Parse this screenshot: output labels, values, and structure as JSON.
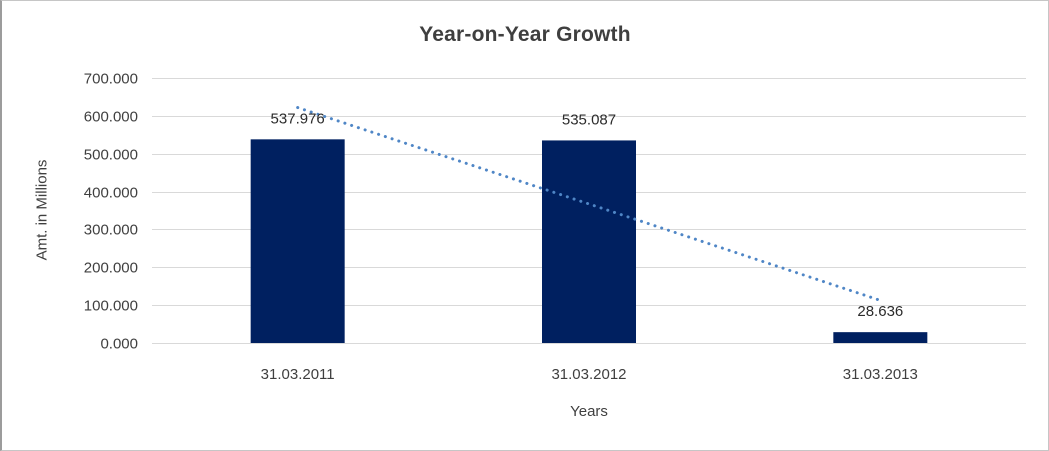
{
  "chart_data": {
    "type": "bar",
    "title": "Year-on-Year Growth",
    "xlabel": "Years",
    "ylabel": "Amt. in Millions",
    "categories": [
      "31.03.2011",
      "31.03.2012",
      "31.03.2013"
    ],
    "values": [
      537.976,
      535.087,
      28.636
    ],
    "value_labels": [
      "537.976",
      "535.087",
      "28.636"
    ],
    "ylim": [
      0,
      700
    ],
    "ytick_values": [
      0,
      100,
      200,
      300,
      400,
      500,
      600,
      700
    ],
    "ytick_labels": [
      "0.000",
      "100.000",
      "200.000",
      "300.000",
      "400.000",
      "500.000",
      "600.000",
      "700.000"
    ],
    "grid": "horizontal-only",
    "legend": "none",
    "bar_color": "#002060",
    "gridline_color": "#d9d9d9",
    "trendline": {
      "type": "linear",
      "style": "dotted",
      "color": "#4f86c6",
      "values_at_categories": [
        621.9,
        367.23,
        112.56
      ]
    }
  }
}
